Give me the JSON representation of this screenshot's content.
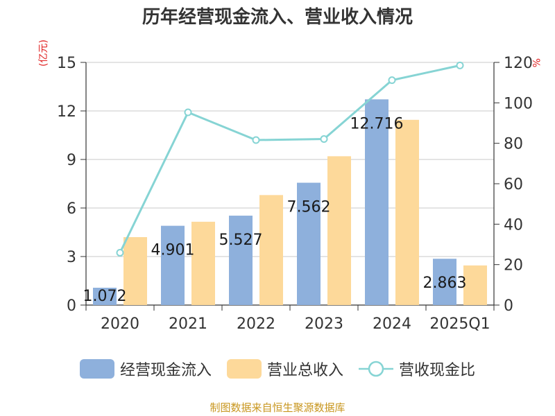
{
  "chart_data": {
    "type": "bar",
    "title": "历年经营现金流入、营业收入情况",
    "y_left_unit": "(亿元)",
    "y_right_unit": "%",
    "categories": [
      "2020",
      "2021",
      "2022",
      "2023",
      "2024",
      "2025Q1"
    ],
    "ylim_left": [
      0,
      15
    ],
    "yticks_left": [
      "0",
      "3",
      "6",
      "9",
      "12",
      "15"
    ],
    "ylim_right": [
      0,
      120
    ],
    "yticks_right": [
      "0",
      "20",
      "40",
      "60",
      "80",
      "100",
      "120"
    ],
    "grid": true,
    "legend_position": "bottom",
    "series": [
      {
        "name": "经营现金流入",
        "type": "bar",
        "axis": "left",
        "color": "#8eb0dc",
        "values": [
          1.072,
          4.901,
          5.527,
          7.562,
          12.716,
          2.863
        ],
        "labels": [
          "1.072",
          "4.901",
          "5.527",
          "7.562",
          "12.716",
          "2.863"
        ]
      },
      {
        "name": "营业总收入",
        "type": "bar",
        "axis": "left",
        "color": "#fdd99a",
        "values": [
          4.2,
          5.15,
          6.8,
          9.2,
          11.45,
          2.45
        ]
      },
      {
        "name": "营收现金比",
        "type": "line",
        "axis": "right",
        "color": "#86d4d4",
        "values": [
          25.9,
          95.3,
          81.6,
          82.1,
          111.2,
          118.5
        ]
      }
    ]
  },
  "source": "制图数据来自恒生聚源数据库"
}
